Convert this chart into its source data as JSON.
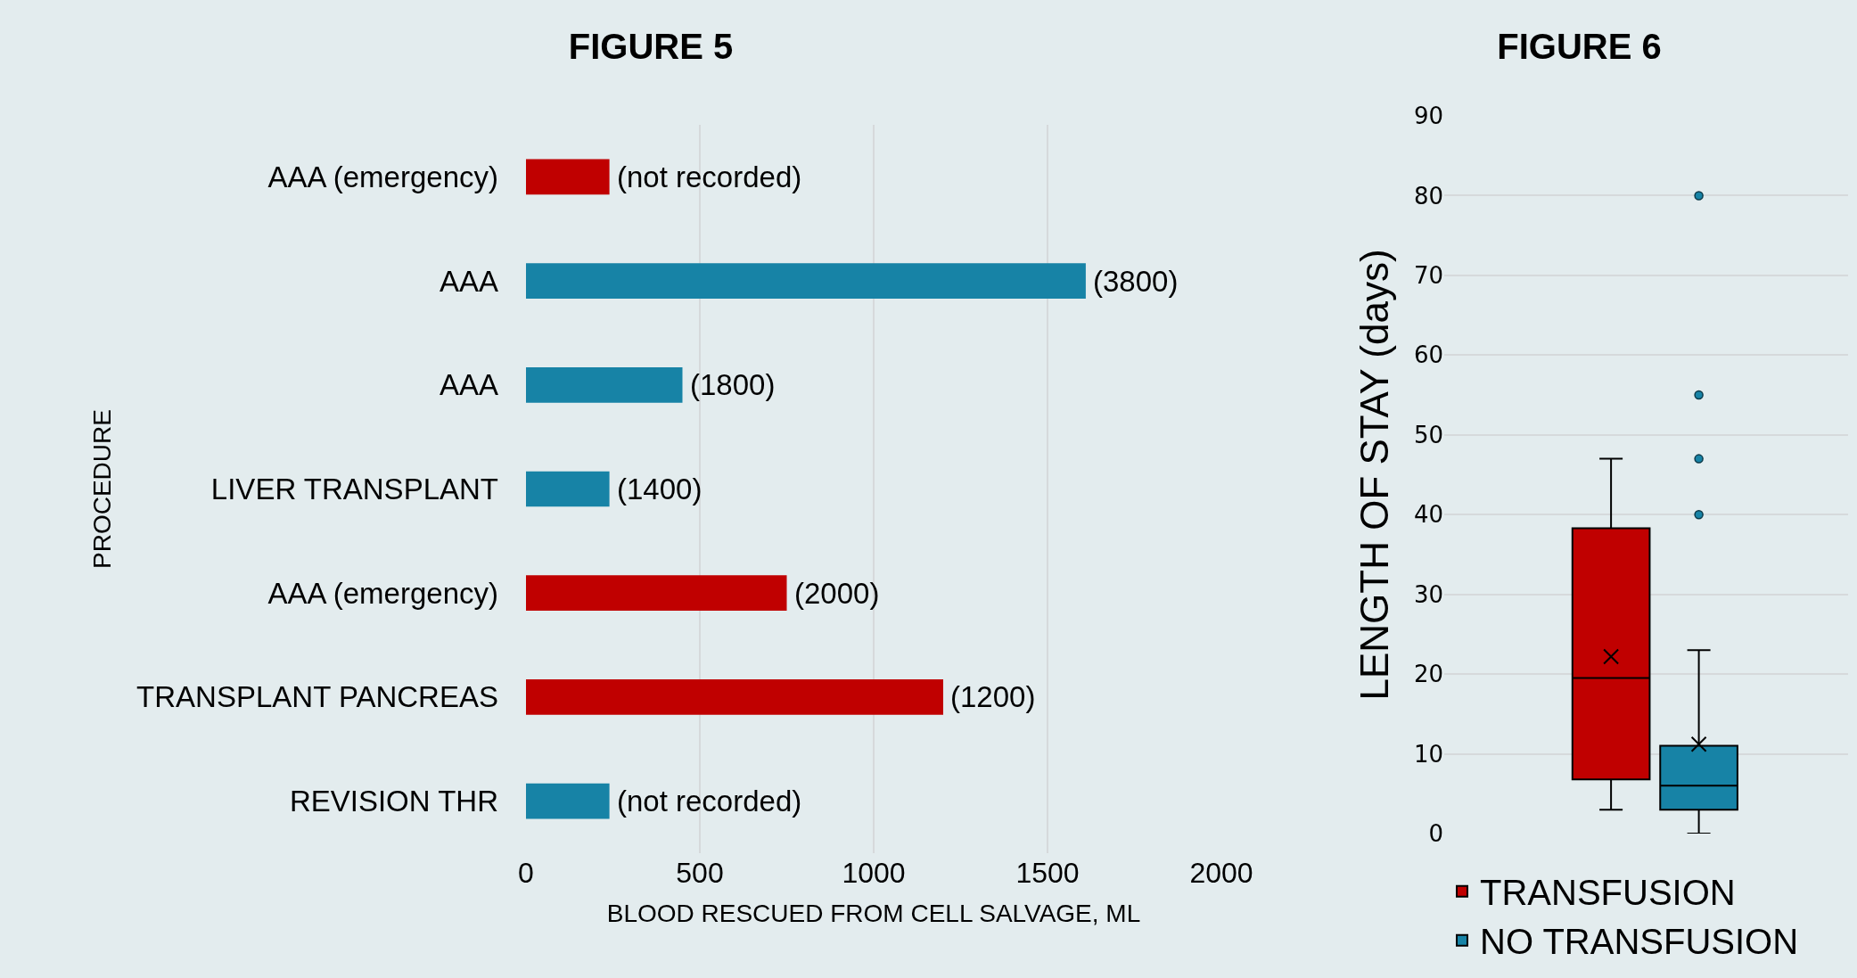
{
  "chart_data": [
    {
      "type": "bar",
      "title": "FIGURE 5",
      "xlabel": "BLOOD RESCUED FROM CELL SALVAGE, ML",
      "ylabel": "PROCEDURE",
      "orientation": "horizontal",
      "categories": [
        "AAA (emergency)",
        "AAA",
        "AAA",
        "LIVER TRANSPLANT",
        "AAA (emergency)",
        "TRANSPLANT PANCREAS",
        "REVISION THR"
      ],
      "values": [
        240,
        1610,
        450,
        240,
        750,
        1200,
        240
      ],
      "colors": [
        "#c00000",
        "#1783a6",
        "#1783a6",
        "#1783a6",
        "#c00000",
        "#c00000",
        "#1783a6"
      ],
      "annotations": [
        "(not recorded)",
        "(3800)",
        "(1800)",
        "(1400)",
        "(2000)",
        "(1200)",
        "(not recorded)"
      ],
      "xlim": [
        0,
        2000
      ],
      "xticks": [
        0,
        500,
        1000,
        1500,
        2000
      ],
      "grid": "x"
    },
    {
      "type": "box",
      "title": "FIGURE 6",
      "ylabel": "LENGTH OF STAY (days)",
      "categories": [
        null
      ],
      "series": [
        {
          "name": "TRANSFUSION",
          "color": "#c00000",
          "boxes": [
            {
              "low": 3,
              "q1": 6.8,
              "median": 19.5,
              "q3": 38.3,
              "high": 47,
              "mean": 22.2
            }
          ]
        },
        {
          "name": "NO TRANSFUSION",
          "color": "#1783a6",
          "boxes": [
            {
              "low": 0,
              "q1": 3,
              "median": 6,
              "q3": 11,
              "high": 23,
              "mean": 11.2,
              "outliers": [
                80,
                55,
                47,
                40
              ]
            }
          ]
        }
      ],
      "ylim": [
        0,
        90
      ],
      "yticks": [
        0,
        10,
        20,
        30,
        40,
        50,
        60,
        70,
        80,
        90
      ],
      "grid": "y",
      "legend": "bottom",
      "tick_labels": "y"
    }
  ]
}
